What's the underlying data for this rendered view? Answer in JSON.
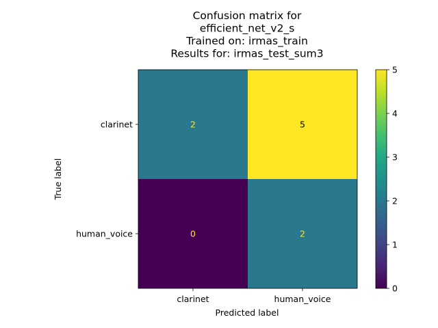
{
  "chart_data": {
    "type": "heatmap",
    "title_lines": [
      "Confusion matrix for",
      "efficient_net_v2_s",
      "Trained on: irmas_train",
      "Results for: irmas_test_sum3"
    ],
    "xlabel": "Predicted label",
    "ylabel": "True label",
    "x_categories": [
      "clarinet",
      "human_voice"
    ],
    "y_categories": [
      "clarinet",
      "human_voice"
    ],
    "matrix": [
      [
        2,
        5
      ],
      [
        0,
        2
      ]
    ],
    "colormap": "viridis",
    "colorbar": {
      "range": [
        0,
        5
      ],
      "ticks": [
        "0",
        "1",
        "2",
        "3",
        "4",
        "5"
      ]
    },
    "text_colors": {
      "on_dark": "#fde725",
      "on_light": "#000000"
    }
  }
}
